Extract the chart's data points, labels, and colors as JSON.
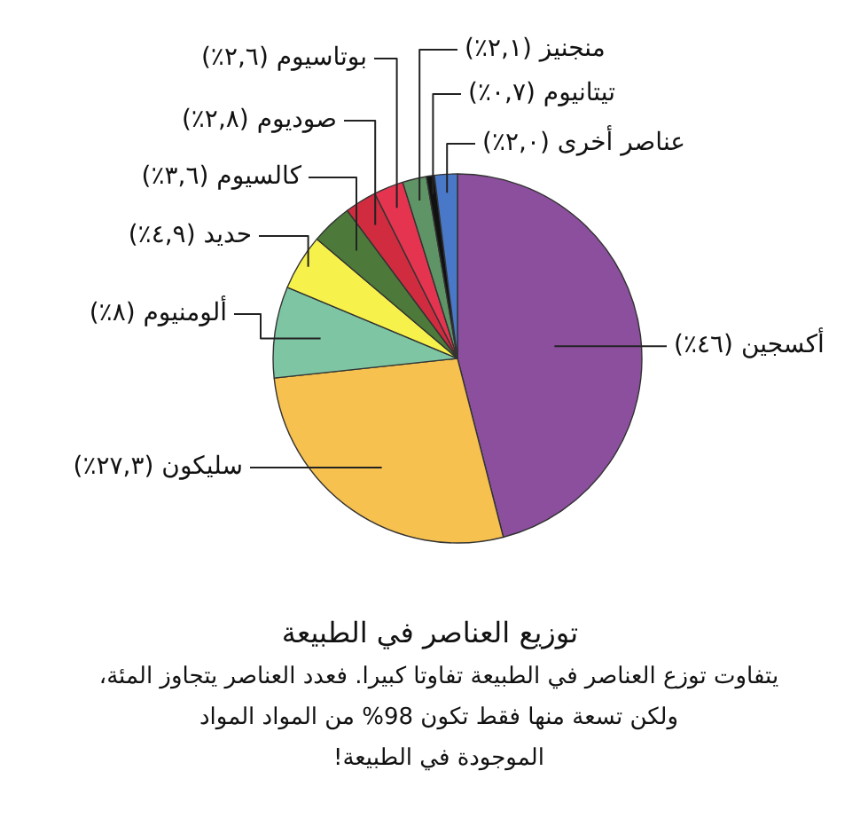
{
  "chart_data": {
    "type": "pie",
    "title": "توزيع العناصر في الطبيعة",
    "subtitle": "يتفاوت توزع العناصر في الطبيعة تفاوتا كبيرا. فعدد العناصر يتجاوز المئة،\nولكن تسعة منها فقط تكون 98% من المواد المواد\nالموجودة في الطبيعة!",
    "categories": [
      "أكسجين",
      "سليكون",
      "ألومنيوم",
      "حديد",
      "كالسيوم",
      "صوديوم",
      "بوتاسيوم",
      "منجنيز",
      "تيتانيوم",
      "عناصر أخرى"
    ],
    "values": [
      46,
      27.3,
      8,
      4.9,
      3.6,
      2.8,
      2.6,
      2.1,
      0.7,
      2.0
    ],
    "value_labels": [
      "(٤٦٪)",
      "(٢٧,٣٪)",
      "(٨٪)",
      "(٤,٩٪)",
      "(٣,٦٪)",
      "(٢,٨٪)",
      "(٢,٦٪)",
      "(٢,١٪)",
      "(٠,٧٪)",
      "(٢,٠٪)"
    ],
    "colors": [
      "#8b4f9e",
      "#f6c14f",
      "#7dc5a3",
      "#f7f24b",
      "#4d7a3a",
      "#d12b3f",
      "#e5344f",
      "#5f9466",
      "#111111",
      "#4a78c8"
    ],
    "legend": false
  }
}
